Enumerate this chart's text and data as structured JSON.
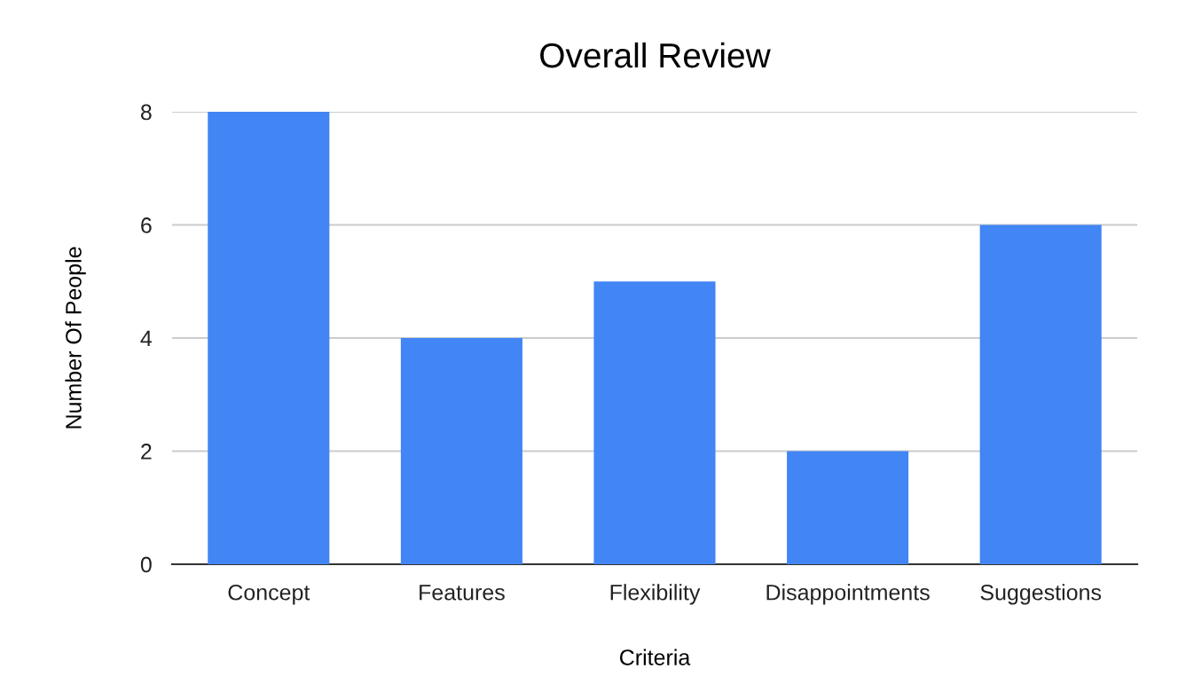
{
  "chart_data": {
    "type": "bar",
    "title": "Overall Review",
    "xlabel": "Criteria",
    "ylabel": "Number Of People",
    "categories": [
      "Concept",
      "Features",
      "Flexibility",
      "Disappointments",
      "Suggestions"
    ],
    "values": [
      8,
      4,
      5,
      2,
      6
    ],
    "color": "#4285f4",
    "ylim": [
      0,
      8
    ],
    "yticks": [
      0,
      2,
      4,
      6,
      8
    ],
    "grid": "y",
    "legend": false
  }
}
